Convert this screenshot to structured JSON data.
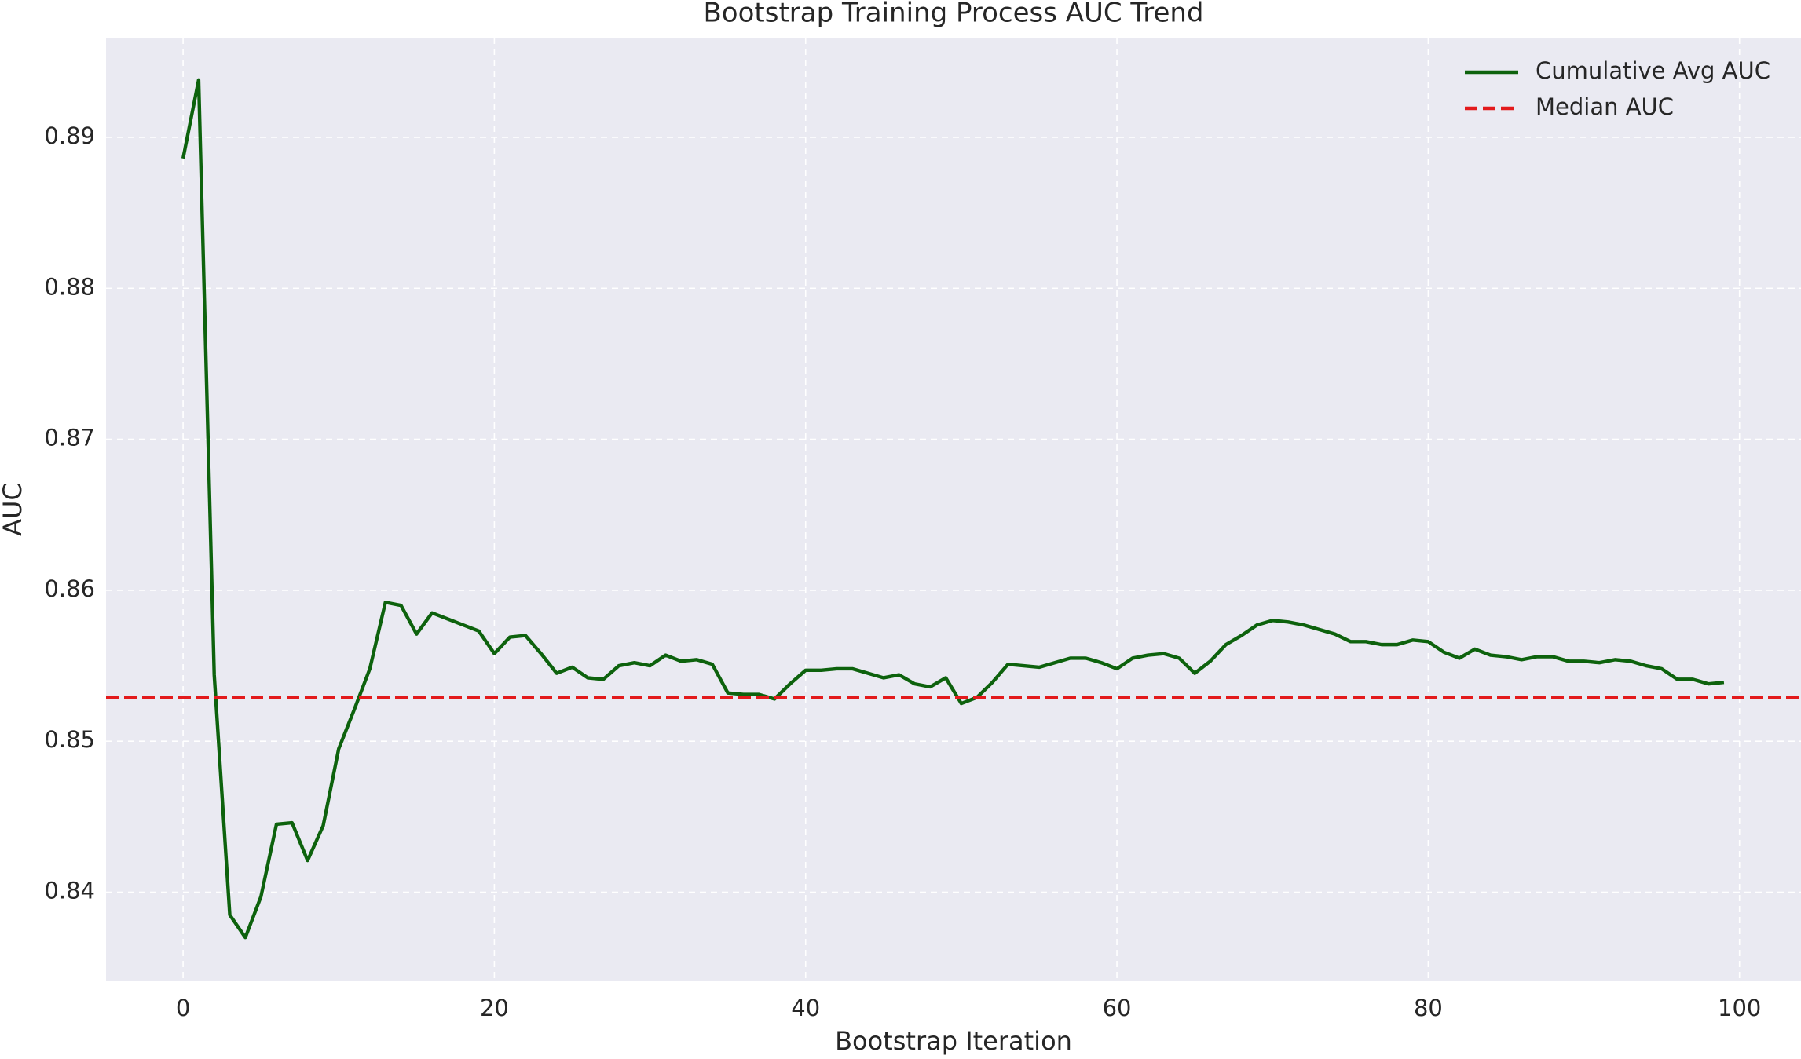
{
  "chart_data": {
    "type": "line",
    "title": "Bootstrap Training Process AUC Trend",
    "x_label": "Bootstrap Iteration",
    "y_label": "AUC",
    "x": [
      0,
      1,
      2,
      3,
      4,
      5,
      6,
      7,
      8,
      9,
      10,
      11,
      12,
      13,
      14,
      15,
      16,
      17,
      18,
      19,
      20,
      21,
      22,
      23,
      24,
      25,
      26,
      27,
      28,
      29,
      30,
      31,
      32,
      33,
      34,
      35,
      36,
      37,
      38,
      39,
      40,
      41,
      42,
      43,
      44,
      45,
      46,
      47,
      48,
      49,
      50,
      51,
      52,
      53,
      54,
      55,
      56,
      57,
      58,
      59,
      60,
      61,
      62,
      63,
      64,
      65,
      66,
      67,
      68,
      69,
      70,
      71,
      72,
      73,
      74,
      75,
      76,
      77,
      78,
      79,
      80,
      81,
      82,
      83,
      84,
      85,
      86,
      87,
      88,
      89,
      90,
      91,
      92,
      93,
      94,
      95,
      96,
      97,
      98,
      99
    ],
    "series": [
      {
        "name": "Cumulative Avg AUC",
        "color": "#0d620d",
        "values": [
          0.8886,
          0.8938,
          0.8544,
          0.8385,
          0.837,
          0.8397,
          0.8445,
          0.8446,
          0.8421,
          0.8444,
          0.8495,
          0.8521,
          0.8548,
          0.8592,
          0.859,
          0.8571,
          0.8585,
          0.8581,
          0.8577,
          0.8573,
          0.8558,
          0.8569,
          0.857,
          0.8558,
          0.8545,
          0.8549,
          0.8542,
          0.8541,
          0.855,
          0.8552,
          0.855,
          0.8557,
          0.8553,
          0.8554,
          0.8551,
          0.8532,
          0.8531,
          0.8531,
          0.8528,
          0.8538,
          0.8547,
          0.8547,
          0.8548,
          0.8548,
          0.8545,
          0.8542,
          0.8544,
          0.8538,
          0.8536,
          0.8542,
          0.8525,
          0.8529,
          0.8539,
          0.8551,
          0.855,
          0.8549,
          0.8552,
          0.8555,
          0.8555,
          0.8552,
          0.8548,
          0.8555,
          0.8557,
          0.8558,
          0.8555,
          0.8545,
          0.8553,
          0.8564,
          0.857,
          0.8577,
          0.858,
          0.8579,
          0.8577,
          0.8574,
          0.8571,
          0.8566,
          0.8566,
          0.8564,
          0.8564,
          0.8567,
          0.8566,
          0.8559,
          0.8555,
          0.8561,
          0.8557,
          0.8556,
          0.8554,
          0.8556,
          0.8556,
          0.8553,
          0.8553,
          0.8552,
          0.8554,
          0.8553,
          0.855,
          0.8548,
          0.8541,
          0.8541,
          0.8538,
          0.8539
        ]
      }
    ],
    "reference_lines": [
      {
        "name": "Median AUC",
        "color": "#e31a1c",
        "value": 0.8529
      }
    ],
    "xlim": [
      -4.95,
      103.95
    ],
    "ylim": [
      0.8341,
      0.8966
    ],
    "xticks": [
      0,
      20,
      40,
      60,
      80,
      100
    ],
    "yticks": [
      0.84,
      0.85,
      0.86,
      0.87,
      0.88,
      0.89
    ],
    "grid": true,
    "legend": "upper right"
  }
}
